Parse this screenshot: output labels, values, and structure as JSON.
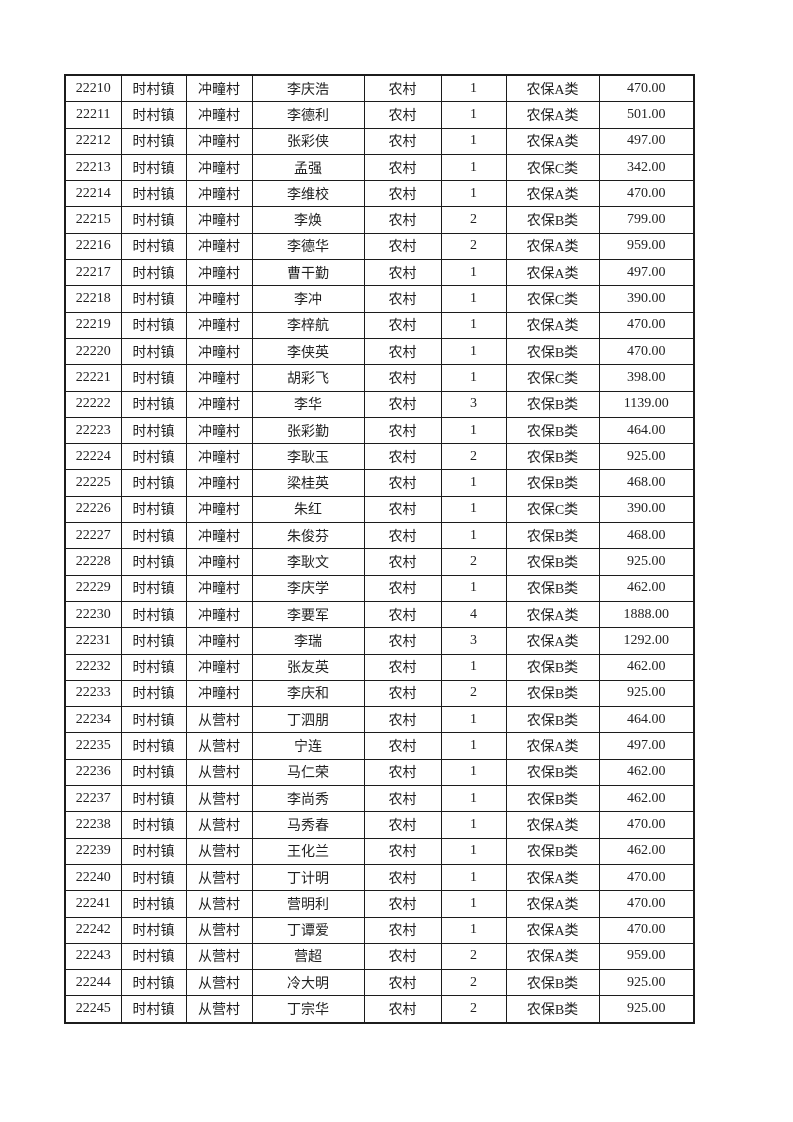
{
  "page": {
    "background_color": "#ffffff",
    "text_color": "#1f1f1f",
    "border_color": "#1c1c1c"
  },
  "table": {
    "column_semantics": [
      "record-id",
      "town",
      "village",
      "person-name",
      "residence-type",
      "person-count",
      "insurance-category",
      "amount"
    ],
    "rows": [
      [
        "22210",
        "时村镇",
        "冲疃村",
        "李庆浩",
        "农村",
        "1",
        "农保A类",
        "470.00"
      ],
      [
        "22211",
        "时村镇",
        "冲疃村",
        "李德利",
        "农村",
        "1",
        "农保A类",
        "501.00"
      ],
      [
        "22212",
        "时村镇",
        "冲疃村",
        "张彩侠",
        "农村",
        "1",
        "农保A类",
        "497.00"
      ],
      [
        "22213",
        "时村镇",
        "冲疃村",
        "孟强",
        "农村",
        "1",
        "农保C类",
        "342.00"
      ],
      [
        "22214",
        "时村镇",
        "冲疃村",
        "李维校",
        "农村",
        "1",
        "农保A类",
        "470.00"
      ],
      [
        "22215",
        "时村镇",
        "冲疃村",
        "李焕",
        "农村",
        "2",
        "农保B类",
        "799.00"
      ],
      [
        "22216",
        "时村镇",
        "冲疃村",
        "李德华",
        "农村",
        "2",
        "农保A类",
        "959.00"
      ],
      [
        "22217",
        "时村镇",
        "冲疃村",
        "曹干勤",
        "农村",
        "1",
        "农保A类",
        "497.00"
      ],
      [
        "22218",
        "时村镇",
        "冲疃村",
        "李冲",
        "农村",
        "1",
        "农保C类",
        "390.00"
      ],
      [
        "22219",
        "时村镇",
        "冲疃村",
        "李梓航",
        "农村",
        "1",
        "农保A类",
        "470.00"
      ],
      [
        "22220",
        "时村镇",
        "冲疃村",
        "李侠英",
        "农村",
        "1",
        "农保B类",
        "470.00"
      ],
      [
        "22221",
        "时村镇",
        "冲疃村",
        "胡彩飞",
        "农村",
        "1",
        "农保C类",
        "398.00"
      ],
      [
        "22222",
        "时村镇",
        "冲疃村",
        "李华",
        "农村",
        "3",
        "农保B类",
        "1139.00"
      ],
      [
        "22223",
        "时村镇",
        "冲疃村",
        "张彩勤",
        "农村",
        "1",
        "农保B类",
        "464.00"
      ],
      [
        "22224",
        "时村镇",
        "冲疃村",
        "李耿玉",
        "农村",
        "2",
        "农保B类",
        "925.00"
      ],
      [
        "22225",
        "时村镇",
        "冲疃村",
        "梁桂英",
        "农村",
        "1",
        "农保B类",
        "468.00"
      ],
      [
        "22226",
        "时村镇",
        "冲疃村",
        "朱红",
        "农村",
        "1",
        "农保C类",
        "390.00"
      ],
      [
        "22227",
        "时村镇",
        "冲疃村",
        "朱俊芬",
        "农村",
        "1",
        "农保B类",
        "468.00"
      ],
      [
        "22228",
        "时村镇",
        "冲疃村",
        "李耿文",
        "农村",
        "2",
        "农保B类",
        "925.00"
      ],
      [
        "22229",
        "时村镇",
        "冲疃村",
        "李庆学",
        "农村",
        "1",
        "农保B类",
        "462.00"
      ],
      [
        "22230",
        "时村镇",
        "冲疃村",
        "李要军",
        "农村",
        "4",
        "农保A类",
        "1888.00"
      ],
      [
        "22231",
        "时村镇",
        "冲疃村",
        "李瑞",
        "农村",
        "3",
        "农保A类",
        "1292.00"
      ],
      [
        "22232",
        "时村镇",
        "冲疃村",
        "张友英",
        "农村",
        "1",
        "农保B类",
        "462.00"
      ],
      [
        "22233",
        "时村镇",
        "冲疃村",
        "李庆和",
        "农村",
        "2",
        "农保B类",
        "925.00"
      ],
      [
        "22234",
        "时村镇",
        "从营村",
        "丁泗朋",
        "农村",
        "1",
        "农保B类",
        "464.00"
      ],
      [
        "22235",
        "时村镇",
        "从营村",
        "宁连",
        "农村",
        "1",
        "农保A类",
        "497.00"
      ],
      [
        "22236",
        "时村镇",
        "从营村",
        "马仁荣",
        "农村",
        "1",
        "农保B类",
        "462.00"
      ],
      [
        "22237",
        "时村镇",
        "从营村",
        "李尚秀",
        "农村",
        "1",
        "农保B类",
        "462.00"
      ],
      [
        "22238",
        "时村镇",
        "从营村",
        "马秀春",
        "农村",
        "1",
        "农保A类",
        "470.00"
      ],
      [
        "22239",
        "时村镇",
        "从营村",
        "王化兰",
        "农村",
        "1",
        "农保B类",
        "462.00"
      ],
      [
        "22240",
        "时村镇",
        "从营村",
        "丁计明",
        "农村",
        "1",
        "农保A类",
        "470.00"
      ],
      [
        "22241",
        "时村镇",
        "从营村",
        "营明利",
        "农村",
        "1",
        "农保A类",
        "470.00"
      ],
      [
        "22242",
        "时村镇",
        "从营村",
        "丁谭爱",
        "农村",
        "1",
        "农保A类",
        "470.00"
      ],
      [
        "22243",
        "时村镇",
        "从营村",
        "营超",
        "农村",
        "2",
        "农保A类",
        "959.00"
      ],
      [
        "22244",
        "时村镇",
        "从营村",
        "冷大明",
        "农村",
        "2",
        "农保B类",
        "925.00"
      ],
      [
        "22245",
        "时村镇",
        "从营村",
        "丁宗华",
        "农村",
        "2",
        "农保B类",
        "925.00"
      ]
    ]
  }
}
